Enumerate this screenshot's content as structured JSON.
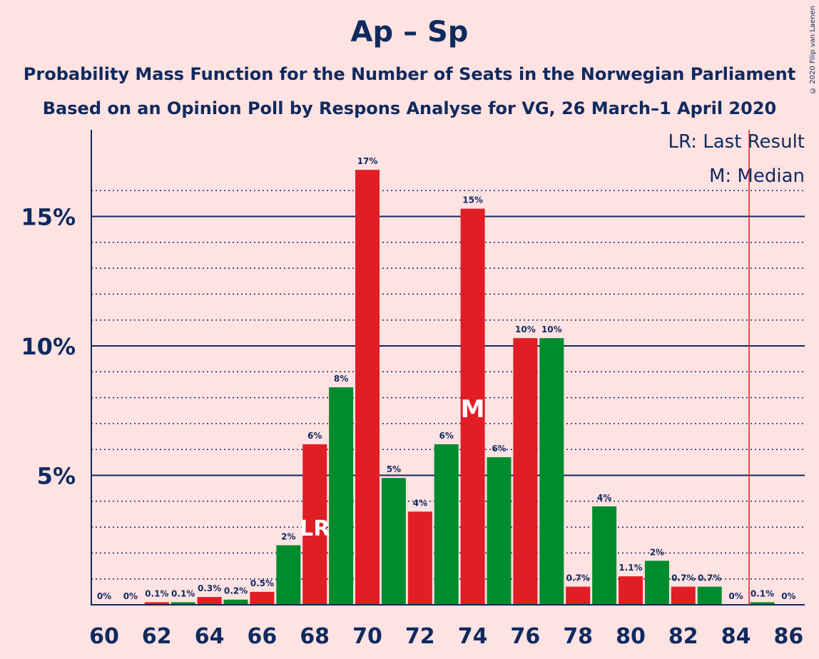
{
  "chart_data": {
    "type": "bar",
    "title": "Ap – Sp",
    "subtitle_1": "Probability Mass Function for the Number of Seats in the Norwegian Parliament",
    "subtitle_2": "Based on an Opinion Poll by Respons Analyse for VG, 26 March–1 April 2020",
    "x": [
      60,
      61,
      62,
      63,
      64,
      65,
      66,
      67,
      68,
      69,
      70,
      71,
      72,
      73,
      74,
      75,
      76,
      77,
      78,
      79,
      80,
      81,
      82,
      83,
      84,
      85,
      86
    ],
    "values": [
      0,
      0,
      0.1,
      0.1,
      0.3,
      0.2,
      0.5,
      2.3,
      6.2,
      8.4,
      16.8,
      4.9,
      3.6,
      6.2,
      15.3,
      5.7,
      10.3,
      10.3,
      0.7,
      3.8,
      1.1,
      1.7,
      0.7,
      0.7,
      0,
      0.1,
      0
    ],
    "value_labels": [
      "0%",
      "0%",
      "0.1%",
      "0.1%",
      "0.3%",
      "0.2%",
      "0.5%",
      "2%",
      "6%",
      "8%",
      "17%",
      "5%",
      "4%",
      "6%",
      "15%",
      "6%",
      "10%",
      "10%",
      "0.7%",
      "4%",
      "1.1%",
      "2%",
      "0.7%",
      "0.7%",
      "0%",
      "0.1%",
      "0%"
    ],
    "x_tick_labels": [
      "60",
      "62",
      "64",
      "66",
      "68",
      "70",
      "72",
      "74",
      "76",
      "78",
      "80",
      "82",
      "84",
      "86"
    ],
    "y_tick_labels": [
      "5%",
      "10%",
      "15%"
    ],
    "y_major_ticks": [
      5,
      10,
      15
    ],
    "y_minor_ticks": [
      1,
      2,
      3,
      4,
      6,
      7,
      8,
      9,
      11,
      12,
      13,
      14,
      16
    ],
    "ylim": [
      0,
      18.2
    ],
    "last_result_seat": 68,
    "median_seat": 74,
    "majority_line_x": 84.5,
    "lr_label": "LR",
    "median_label": "M",
    "legend": [
      "LR: Last Result",
      "M: Median"
    ],
    "grid": true,
    "colors": {
      "red": "#e11d26",
      "green": "#008c2e",
      "axis": "#0f2a5e",
      "majority": "#e11d26",
      "background": "#ffe2e2"
    }
  },
  "copyright": "© 2020 Filip van Laenen"
}
